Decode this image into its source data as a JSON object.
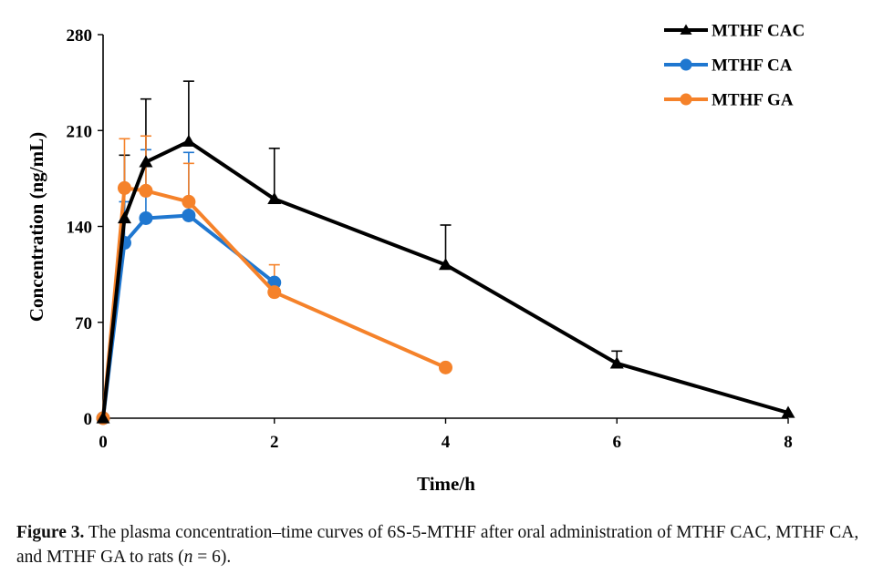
{
  "chart_data": {
    "type": "line",
    "title": "",
    "xlabel": "Time/h",
    "ylabel": "Concentration (ng/mL)",
    "xlim": [
      0,
      8
    ],
    "ylim": [
      0,
      280
    ],
    "xticks": [
      0,
      2,
      4,
      6,
      8
    ],
    "yticks": [
      0,
      70,
      140,
      210,
      280
    ],
    "grid": false,
    "legend_position": "top-right",
    "series": [
      {
        "name": "MTHF CAC",
        "color": "#000000",
        "marker": "triangle",
        "x": [
          0,
          0.25,
          0.5,
          1,
          2,
          4,
          6,
          8
        ],
        "y": [
          0,
          146,
          187,
          202,
          160,
          112,
          40,
          4
        ],
        "error_upper": [
          null,
          192,
          233,
          246,
          197,
          141,
          49,
          null
        ]
      },
      {
        "name": "MTHF CA",
        "color": "#1f77d0",
        "marker": "circle",
        "x": [
          0,
          0.25,
          0.5,
          1,
          2
        ],
        "y": [
          0,
          128,
          146,
          148,
          99
        ],
        "error_upper": [
          null,
          158,
          196,
          194,
          null
        ]
      },
      {
        "name": "MTHF GA",
        "color": "#f5822a",
        "marker": "circle",
        "x": [
          0,
          0.25,
          0.5,
          1,
          2,
          4
        ],
        "y": [
          0,
          168,
          166,
          158,
          92,
          37
        ],
        "error_upper": [
          null,
          204,
          206,
          186,
          112,
          null
        ]
      }
    ]
  },
  "caption": {
    "label": "Figure 3.",
    "text_before_n": " The plasma concentration–time curves of 6S-5-MTHF after oral administration of MTHF CAC, MTHF CA, and MTHF GA to rats (",
    "n_symbol": "n",
    "text_after_n": " = 6)."
  }
}
